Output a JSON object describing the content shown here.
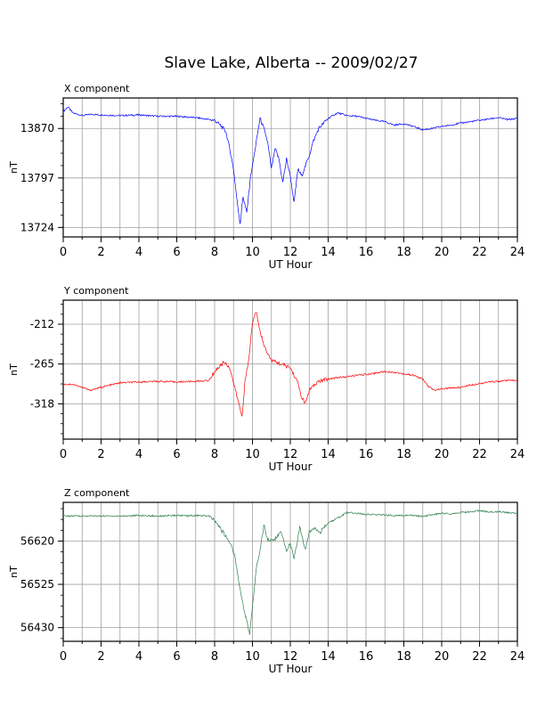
{
  "page": {
    "title": "Slave Lake, Alberta -- 2009/02/27"
  },
  "chart_data": [
    {
      "type": "line",
      "title": "X component",
      "xlabel": "UT Hour",
      "ylabel": "nT",
      "xlim": [
        0,
        24
      ],
      "ylim": [
        13710,
        13915
      ],
      "x_ticks": [
        0,
        2,
        4,
        6,
        8,
        10,
        12,
        14,
        16,
        18,
        20,
        22,
        24
      ],
      "y_ticks": [
        13724,
        13797,
        13870
      ],
      "grid": true,
      "series": [
        {
          "color": "#0000ff",
          "x": [
            0,
            0.25,
            0.5,
            1,
            1.5,
            2,
            3,
            4,
            5,
            6,
            7,
            7.5,
            8,
            8.3,
            8.6,
            8.8,
            9.0,
            9.2,
            9.35,
            9.5,
            9.7,
            9.9,
            10.0,
            10.2,
            10.4,
            10.6,
            10.8,
            11.0,
            11.2,
            11.4,
            11.6,
            11.8,
            12.0,
            12.2,
            12.4,
            12.6,
            12.8,
            13.0,
            13.2,
            13.5,
            14.0,
            14.5,
            15.0,
            15.5,
            16.0,
            16.5,
            17.0,
            17.5,
            18.0,
            18.5,
            19.0,
            19.5,
            20.0,
            20.5,
            21.0,
            21.5,
            22.0,
            22.5,
            23.0,
            23.5,
            24.0
          ],
          "values": [
            13895,
            13902,
            13893,
            13889,
            13891,
            13890,
            13889,
            13890,
            13888,
            13888,
            13886,
            13884,
            13882,
            13875,
            13865,
            13840,
            13810,
            13760,
            13730,
            13770,
            13745,
            13800,
            13815,
            13850,
            13885,
            13870,
            13850,
            13810,
            13840,
            13825,
            13790,
            13825,
            13800,
            13760,
            13810,
            13800,
            13815,
            13830,
            13850,
            13870,
            13885,
            13893,
            13889,
            13888,
            13885,
            13882,
            13880,
            13875,
            13877,
            13873,
            13868,
            13870,
            13873,
            13875,
            13878,
            13880,
            13882,
            13884,
            13886,
            13883,
            13885
          ]
        }
      ]
    },
    {
      "type": "line",
      "title": "Y component",
      "xlabel": "UT Hour",
      "ylabel": "nT",
      "xlim": [
        0,
        24
      ],
      "ylim": [
        -365,
        -180
      ],
      "x_ticks": [
        0,
        2,
        4,
        6,
        8,
        10,
        12,
        14,
        16,
        18,
        20,
        22,
        24
      ],
      "y_ticks": [
        -212,
        -265,
        -318
      ],
      "grid": true,
      "series": [
        {
          "color": "#ff0000",
          "x": [
            0,
            0.5,
            1,
            1.4,
            2,
            3,
            4,
            5,
            6,
            7,
            7.7,
            8,
            8.5,
            8.8,
            9.1,
            9.3,
            9.45,
            9.6,
            9.8,
            10.0,
            10.2,
            10.4,
            10.6,
            10.8,
            11.0,
            11.5,
            12.0,
            12.4,
            12.6,
            12.8,
            13.0,
            13.5,
            14.0,
            14.5,
            15.0,
            15.5,
            16.0,
            16.5,
            17.0,
            17.5,
            18.0,
            18.5,
            19.0,
            19.3,
            19.6,
            20.0,
            20.5,
            21.0,
            21.5,
            22.0,
            22.5,
            23.0,
            23.5,
            24.0
          ],
          "values": [
            -292,
            -292,
            -296,
            -300,
            -296,
            -290,
            -289,
            -288,
            -289,
            -288,
            -287,
            -275,
            -262,
            -270,
            -300,
            -320,
            -335,
            -290,
            -260,
            -210,
            -195,
            -220,
            -240,
            -250,
            -260,
            -265,
            -270,
            -290,
            -310,
            -318,
            -300,
            -288,
            -285,
            -283,
            -282,
            -280,
            -279,
            -277,
            -275,
            -276,
            -278,
            -280,
            -285,
            -295,
            -300,
            -298,
            -297,
            -296,
            -293,
            -291,
            -289,
            -288,
            -287,
            -287
          ]
        }
      ]
    },
    {
      "type": "line",
      "title": "Z component",
      "xlabel": "UT Hour",
      "ylabel": "nT",
      "xlim": [
        0,
        24
      ],
      "ylim": [
        56400,
        56705
      ],
      "x_ticks": [
        0,
        2,
        4,
        6,
        8,
        10,
        12,
        14,
        16,
        18,
        20,
        22,
        24
      ],
      "y_ticks": [
        56430,
        56525,
        56620
      ],
      "grid": true,
      "series": [
        {
          "color": "#2e7d4f",
          "x": [
            0,
            1,
            2,
            3,
            4,
            5,
            6,
            7,
            7.7,
            8.0,
            8.3,
            8.6,
            8.9,
            9.1,
            9.3,
            9.5,
            9.7,
            9.85,
            10.0,
            10.2,
            10.4,
            10.6,
            10.8,
            11.0,
            11.2,
            11.5,
            11.8,
            12.0,
            12.2,
            12.5,
            12.8,
            13.0,
            13.3,
            13.6,
            14.0,
            14.5,
            15.0,
            15.5,
            16.0,
            16.5,
            17.0,
            17.5,
            18.0,
            18.5,
            19.0,
            19.5,
            20.0,
            20.5,
            21.0,
            21.5,
            22.0,
            22.5,
            23.0,
            23.5,
            24.0
          ],
          "values": [
            56675,
            56675,
            56675,
            56675,
            56676,
            56675,
            56676,
            56676,
            56675,
            56665,
            56648,
            56630,
            56610,
            56580,
            56525,
            56480,
            56445,
            56415,
            56475,
            56560,
            56600,
            56655,
            56625,
            56620,
            56625,
            56640,
            56600,
            56615,
            56580,
            56650,
            56600,
            56640,
            56650,
            56640,
            56660,
            56670,
            56683,
            56681,
            56679,
            56678,
            56677,
            56676,
            56676,
            56677,
            56674,
            56678,
            56681,
            56680,
            56683,
            56684,
            56687,
            56684,
            56685,
            56682,
            56681
          ]
        }
      ]
    }
  ]
}
